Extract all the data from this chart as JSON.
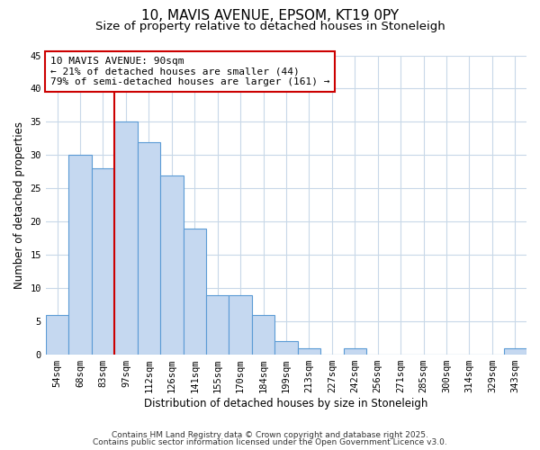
{
  "title_line1": "10, MAVIS AVENUE, EPSOM, KT19 0PY",
  "title_line2": "Size of property relative to detached houses in Stoneleigh",
  "xlabel": "Distribution of detached houses by size in Stoneleigh",
  "ylabel": "Number of detached properties",
  "bin_labels": [
    "54sqm",
    "68sqm",
    "83sqm",
    "97sqm",
    "112sqm",
    "126sqm",
    "141sqm",
    "155sqm",
    "170sqm",
    "184sqm",
    "199sqm",
    "213sqm",
    "227sqm",
    "242sqm",
    "256sqm",
    "271sqm",
    "285sqm",
    "300sqm",
    "314sqm",
    "329sqm",
    "343sqm"
  ],
  "bar_heights": [
    6,
    30,
    28,
    35,
    32,
    27,
    19,
    9,
    9,
    6,
    2,
    1,
    0,
    1,
    0,
    0,
    0,
    0,
    0,
    0,
    1
  ],
  "bar_color": "#c5d8f0",
  "bar_edge_color": "#5b9bd5",
  "background_color": "#ffffff",
  "grid_color": "#c8d8e8",
  "vline_x_index": 2.5,
  "vline_color": "#cc0000",
  "annotation_line1": "10 MAVIS AVENUE: 90sqm",
  "annotation_line2": "← 21% of detached houses are smaller (44)",
  "annotation_line3": "79% of semi-detached houses are larger (161) →",
  "annotation_box_color": "#ffffff",
  "annotation_box_edge_color": "#cc0000",
  "ylim": [
    0,
    45
  ],
  "yticks": [
    0,
    5,
    10,
    15,
    20,
    25,
    30,
    35,
    40,
    45
  ],
  "footer_line1": "Contains HM Land Registry data © Crown copyright and database right 2025.",
  "footer_line2": "Contains public sector information licensed under the Open Government Licence v3.0.",
  "title_fontsize": 11,
  "subtitle_fontsize": 9.5,
  "axis_label_fontsize": 8.5,
  "tick_fontsize": 7.5,
  "annotation_fontsize": 8,
  "footer_fontsize": 6.5
}
